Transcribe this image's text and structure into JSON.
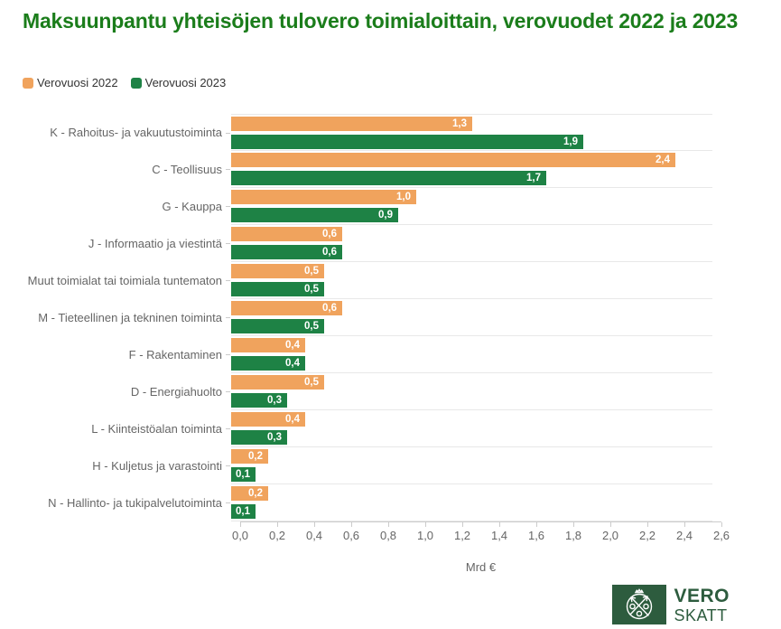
{
  "title": "Maksuunpantu yhteisöjen tulovero toimialoittain, verovuodet 2022 ja 2023",
  "legend": {
    "position": "top-left",
    "items": [
      {
        "label": "Verovuosi 2022",
        "color": "#f0a35d"
      },
      {
        "label": "Verovuosi 2023",
        "color": "#1e8245"
      }
    ]
  },
  "chart_data": {
    "type": "bar",
    "orientation": "horizontal",
    "title": "Maksuunpantu yhteisöjen tulovero toimialoittain, verovuodet 2022 ja 2023",
    "categories": [
      "K - Rahoitus- ja vakuutustoiminta",
      "C - Teollisuus",
      "G - Kauppa",
      "J - Informaatio ja viestintä",
      "Muut toimialat tai toimiala tuntematon",
      "M - Tieteellinen ja tekninen toiminta",
      "F - Rakentaminen",
      "D - Energiahuolto",
      "L - Kiinteistöalan toiminta",
      "H - Kuljetus ja varastointi",
      "N - Hallinto- ja tukipalvelutoiminta"
    ],
    "series": [
      {
        "name": "Verovuosi 2022",
        "color": "#f0a35d",
        "values": [
          1.3,
          2.4,
          1.0,
          0.6,
          0.5,
          0.6,
          0.4,
          0.5,
          0.4,
          0.2,
          0.2
        ]
      },
      {
        "name": "Verovuosi 2023",
        "color": "#1e8245",
        "values": [
          1.9,
          1.7,
          0.9,
          0.6,
          0.5,
          0.5,
          0.4,
          0.3,
          0.3,
          0.1,
          0.1
        ]
      }
    ],
    "value_labels": [
      [
        "1,3",
        "2,4",
        "1,0",
        "0,6",
        "0,5",
        "0,6",
        "0,4",
        "0,5",
        "0,4",
        "0,2",
        "0,2"
      ],
      [
        "1,9",
        "1,7",
        "0,9",
        "0,6",
        "0,5",
        "0,5",
        "0,4",
        "0,3",
        "0,3",
        "0,1",
        "0,1"
      ]
    ],
    "xlabel": "Mrd €",
    "xlim": [
      0,
      2.6
    ],
    "xticks": [
      "0,0",
      "0,2",
      "0,4",
      "0,6",
      "0,8",
      "1,0",
      "1,2",
      "1,4",
      "1,6",
      "1,8",
      "2,0",
      "2,2",
      "2,4",
      "2,6"
    ],
    "grid": "category-separator-lines",
    "legend_position": "top-left",
    "value_label_color": "#ffffff"
  },
  "logo": {
    "line1": "VERO",
    "line2": "SKATT",
    "square_color": "#2d5c3e",
    "text_color": "#2d5c3e"
  },
  "colors": {
    "title_green": "#1b7d1b",
    "axis_text": "#666666",
    "legend_text": "#333333",
    "separator": "#e8e8e8",
    "axis_line": "#cccccc"
  }
}
